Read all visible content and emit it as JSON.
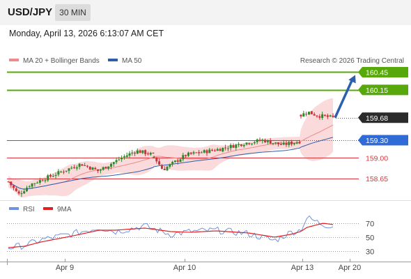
{
  "header": {
    "pair": "USD/JPY",
    "timeframe": "30 MIN"
  },
  "timestamp": "Monday, April 13, 2026 6:13:07 AM CET",
  "legend": {
    "ma20": "MA 20 + Bollinger Bands",
    "ma50": "MA 50",
    "credit": "Research © 2026 Trading Central"
  },
  "rsi_legend": {
    "rsi": "RSI",
    "ma9": "9MA"
  },
  "colors": {
    "green": "#57a80b",
    "blue": "#2f6bd6",
    "dark": "#2b2b2b",
    "red": "#d9363e",
    "bull": "#2a8a2a",
    "bear": "#c8323a",
    "band": "#f9d4d4",
    "ma20": "#f08a8a",
    "ma50": "#2e5ea8",
    "rsi": "#6f93e0",
    "ma9": "#e02020",
    "arrow": "#2c5fb0"
  },
  "chart_data": [
    {
      "type": "candlestick",
      "title": "USD/JPY 30 MIN",
      "ylim": [
        158.25,
        160.55
      ],
      "x_ticks": [
        "Apr 9",
        "Apr 10",
        "Apr 13",
        "Apr 20"
      ],
      "price_levels": [
        {
          "value": 160.45,
          "label": "160.45",
          "kind": "target"
        },
        {
          "value": 160.15,
          "label": "160.15",
          "kind": "target"
        },
        {
          "value": 159.68,
          "label": "159.68",
          "kind": "last"
        },
        {
          "value": 159.3,
          "label": "159.30",
          "kind": "pivot"
        },
        {
          "value": 159.0,
          "label": "159.00",
          "kind": "support"
        },
        {
          "value": 158.65,
          "label": "158.65",
          "kind": "support"
        }
      ],
      "segments": [
        {
          "name": "Apr 9",
          "anchors": [
            [
              0,
              158.6
            ],
            [
              0.07,
              158.38
            ],
            [
              0.15,
              158.55
            ],
            [
              0.35,
              158.75
            ],
            [
              0.5,
              158.9
            ],
            [
              0.62,
              158.78
            ],
            [
              0.78,
              159.0
            ],
            [
              0.88,
              159.12
            ],
            [
              0.96,
              159.08
            ],
            [
              1,
              159.05
            ]
          ]
        },
        {
          "name": "Apr 10",
          "anchors": [
            [
              0,
              159.02
            ],
            [
              0.06,
              158.8
            ],
            [
              0.22,
              159.05
            ],
            [
              0.45,
              159.15
            ],
            [
              0.62,
              159.25
            ],
            [
              0.75,
              159.3
            ],
            [
              0.88,
              159.22
            ],
            [
              1,
              159.28
            ]
          ]
        },
        {
          "name": "Apr 13",
          "anchors": [
            [
              0,
              159.72
            ],
            [
              0.2,
              159.78
            ],
            [
              0.5,
              159.72
            ],
            [
              0.75,
              159.7
            ],
            [
              1,
              159.68
            ]
          ]
        }
      ],
      "arrow": {
        "from": 159.68,
        "to": 160.45
      }
    },
    {
      "type": "line",
      "title": "RSI",
      "ylim": [
        20,
        85
      ],
      "y_ticks": [
        70,
        50,
        30
      ],
      "series": [
        {
          "name": "RSI",
          "anchors": [
            [
              0,
              35
            ],
            [
              0.05,
              38
            ],
            [
              0.1,
              46
            ],
            [
              0.2,
              55
            ],
            [
              0.28,
              64
            ],
            [
              0.33,
              58
            ],
            [
              0.42,
              66
            ],
            [
              0.5,
              54
            ],
            [
              0.56,
              58
            ],
            [
              0.64,
              60
            ],
            [
              0.74,
              55
            ],
            [
              0.82,
              45
            ],
            [
              0.87,
              57
            ],
            [
              0.9,
              60
            ],
            [
              0.92,
              78
            ],
            [
              0.97,
              68
            ],
            [
              1,
              66
            ]
          ]
        },
        {
          "name": "9MA",
          "anchors": [
            [
              0,
              35
            ],
            [
              0.05,
              37
            ],
            [
              0.1,
              43
            ],
            [
              0.2,
              52
            ],
            [
              0.28,
              60
            ],
            [
              0.33,
              60
            ],
            [
              0.42,
              63
            ],
            [
              0.5,
              58
            ],
            [
              0.56,
              57
            ],
            [
              0.64,
              59
            ],
            [
              0.74,
              56
            ],
            [
              0.82,
              50
            ],
            [
              0.87,
              54
            ],
            [
              0.9,
              58
            ],
            [
              0.92,
              64
            ],
            [
              0.97,
              70
            ],
            [
              1,
              68
            ]
          ]
        }
      ]
    }
  ]
}
